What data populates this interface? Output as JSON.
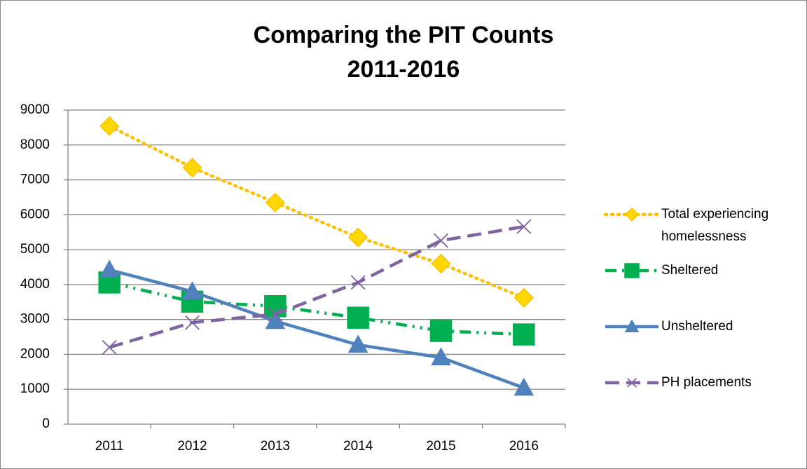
{
  "chart_data": {
    "type": "line",
    "title": [
      "Comparing the PIT Counts",
      "2011-2016"
    ],
    "categories": [
      "2011",
      "2012",
      "2013",
      "2014",
      "2015",
      "2016"
    ],
    "series": [
      {
        "name": "Total experiencing homelessness",
        "color": "#FFC000",
        "marker_fill": "#FFD700",
        "dash": "dotted",
        "marker": "diamond",
        "values": [
          8540,
          7350,
          6350,
          5350,
          4600,
          3620
        ]
      },
      {
        "name": "Sheltered",
        "color": "#00B050",
        "marker_fill": "#00B050",
        "dash": "dashdot",
        "marker": "square",
        "values": [
          4060,
          3510,
          3380,
          3050,
          2670,
          2570
        ]
      },
      {
        "name": "Unsheltered",
        "color": "#4F81BD",
        "marker_fill": "#4F81BD",
        "dash": "solid",
        "marker": "triangle",
        "values": [
          4420,
          3800,
          2950,
          2270,
          1910,
          1040
        ]
      },
      {
        "name": "PH placements",
        "color": "#8064A2",
        "marker_fill": "none",
        "dash": "dashed",
        "marker": "x",
        "values": [
          2200,
          2910,
          3150,
          4060,
          5260,
          5660
        ]
      }
    ],
    "ylim": [
      0,
      9000
    ],
    "yticks": [
      0,
      1000,
      2000,
      3000,
      4000,
      5000,
      6000,
      7000,
      8000,
      9000
    ],
    "grid": true,
    "legend": "right"
  }
}
